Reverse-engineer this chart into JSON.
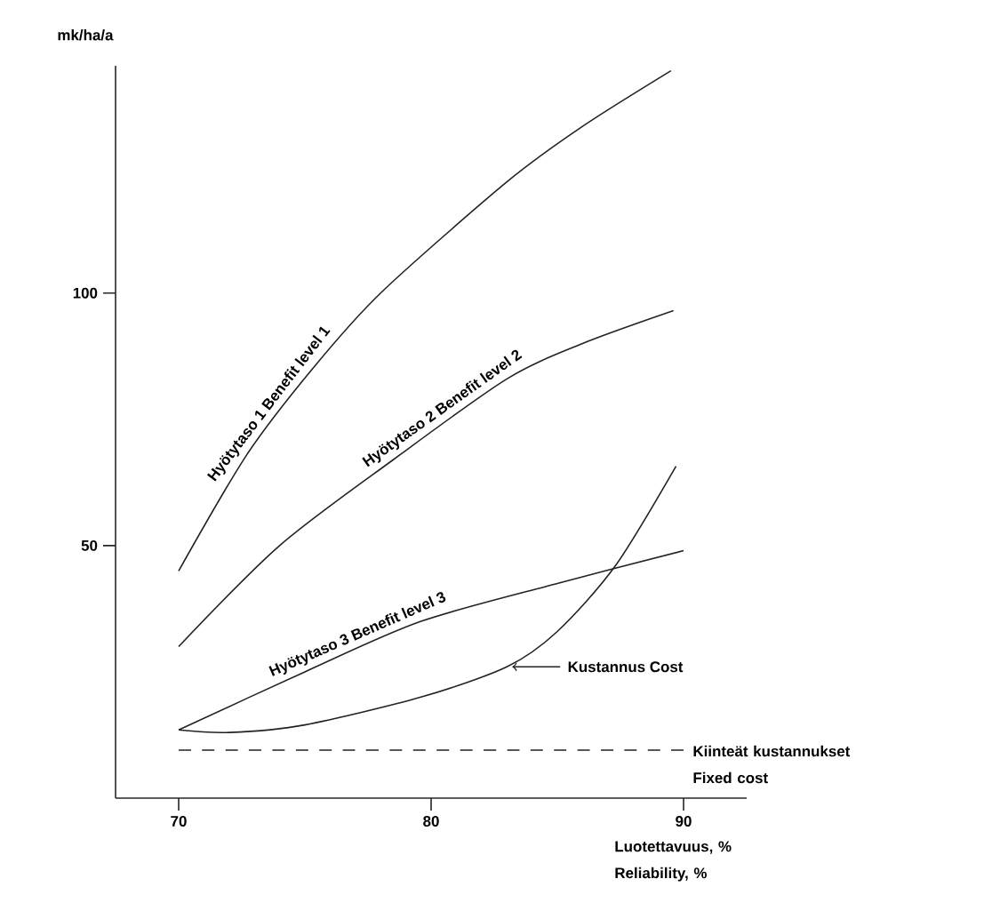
{
  "chart_data": {
    "type": "line",
    "xlabel": "Luotettavuus, % Reliability, %",
    "ylabel": "mk/ha/a",
    "xlim": [
      67.5,
      92.5
    ],
    "ylim": [
      0,
      145
    ],
    "xticks": [
      70,
      80,
      90
    ],
    "yticks": [
      50,
      100
    ],
    "grid": false,
    "marker": "none",
    "series": [
      {
        "name": "Hyötytaso 1   Benefit level 1",
        "color": "#222222",
        "line_style": "solid",
        "x": [
          70,
          72.7,
          75.3,
          78,
          83,
          86,
          89.5
        ],
        "values": [
          45,
          68,
          85,
          100,
          122,
          133,
          144
        ]
      },
      {
        "name": "Hyötytaso 2   Benefit level 2",
        "color": "#222222",
        "line_style": "solid",
        "x": [
          70,
          74,
          78.5,
          83,
          86,
          89.6
        ],
        "values": [
          30,
          50,
          67,
          83,
          90,
          96.5
        ]
      },
      {
        "name": "Hyötytaso 3   Benefit level 3",
        "color": "#222222",
        "line_style": "solid",
        "x": [
          70,
          75,
          79.6,
          85,
          90
        ],
        "values": [
          13.5,
          25,
          35,
          42.5,
          49
        ]
      },
      {
        "name": "Kustannus   Cost",
        "color": "#222222",
        "line_style": "solid",
        "x": [
          70,
          72,
          75,
          79.6,
          83,
          85,
          87.3,
          89.7
        ],
        "values": [
          13.5,
          13,
          14.5,
          20,
          26,
          33,
          46,
          65.7
        ]
      },
      {
        "name": "Kiinteät kustannukset Fixed cost",
        "color": "#222222",
        "line_style": "dashed",
        "x": [
          70,
          90
        ],
        "values": [
          9.5,
          9.5
        ]
      }
    ]
  }
}
